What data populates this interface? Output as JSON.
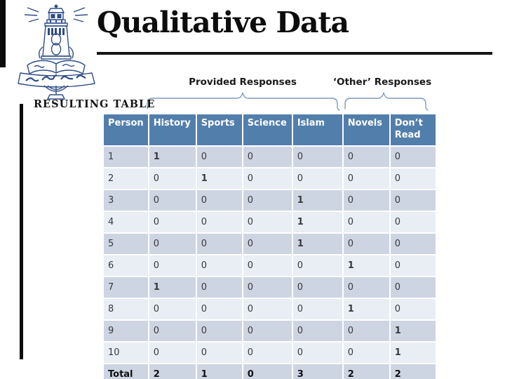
{
  "slide": {
    "title": "Qualitative Data",
    "section_label": "RESULTING TABLE",
    "group_labels": {
      "provided": "Provided Responses",
      "other": "‘Other’ Responses"
    }
  },
  "table": {
    "columns": [
      "Person",
      "History",
      "Sports",
      "Science",
      "Islam",
      "Novels",
      "Don’t Read"
    ],
    "rows": [
      {
        "person": "1",
        "values": [
          "1",
          "0",
          "0",
          "0",
          "0",
          "0"
        ]
      },
      {
        "person": "2",
        "values": [
          "0",
          "1",
          "0",
          "0",
          "0",
          "0"
        ]
      },
      {
        "person": "3",
        "values": [
          "0",
          "0",
          "0",
          "1",
          "0",
          "0"
        ]
      },
      {
        "person": "4",
        "values": [
          "0",
          "0",
          "0",
          "1",
          "0",
          "0"
        ]
      },
      {
        "person": "5",
        "values": [
          "0",
          "0",
          "0",
          "1",
          "0",
          "0"
        ]
      },
      {
        "person": "6",
        "values": [
          "0",
          "0",
          "0",
          "0",
          "1",
          "0"
        ]
      },
      {
        "person": "7",
        "values": [
          "1",
          "0",
          "0",
          "0",
          "0",
          "0"
        ]
      },
      {
        "person": "8",
        "values": [
          "0",
          "0",
          "0",
          "0",
          "1",
          "0"
        ]
      },
      {
        "person": "9",
        "values": [
          "0",
          "0",
          "0",
          "0",
          "0",
          "1"
        ]
      },
      {
        "person": "10",
        "values": [
          "0",
          "0",
          "0",
          "0",
          "0",
          "1"
        ]
      },
      {
        "person": "Total",
        "values": [
          "2",
          "1",
          "0",
          "3",
          "2",
          "2"
        ],
        "is_total": true
      }
    ]
  },
  "colors": {
    "header_bg": "#527EAC",
    "band_dark": "#CDD4E2",
    "band_light": "#E9EDF4",
    "highlight_red": "#BE2B2F",
    "brace_line": "#7E99BB",
    "logo_blue": "#2E4D86",
    "accent_black": "#0B0B0B"
  }
}
